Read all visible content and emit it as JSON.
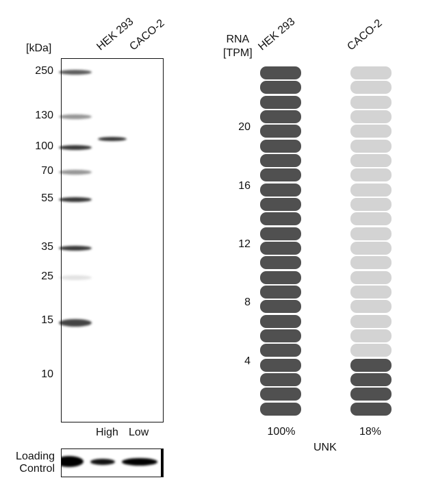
{
  "blot": {
    "unit_label": "[kDa]",
    "lanes": [
      "HEK 293",
      "CACO-2"
    ],
    "markers": [
      "250",
      "130",
      "100",
      "70",
      "55",
      "35",
      "25",
      "15",
      "10"
    ],
    "expression": [
      "High",
      "Low"
    ],
    "loading_control_label": [
      "Loading",
      "Control"
    ]
  },
  "rna": {
    "axis_label": [
      "RNA",
      "[TPM]"
    ],
    "unit_label": "UNK",
    "colors": {
      "filled": "#505050",
      "empty": "#d3d3d3"
    }
  },
  "chart_data": {
    "type": "bar",
    "title": "",
    "ylabel": "RNA [TPM]",
    "xlabel": "UNK",
    "categories": [
      "HEK 293",
      "CACO-2"
    ],
    "ticks": [
      "4",
      "8",
      "12",
      "16",
      "20"
    ],
    "ylim": [
      0,
      24
    ],
    "values": [
      24,
      4.3
    ],
    "value_labels": [
      "100%",
      "18%"
    ],
    "grid": false
  }
}
